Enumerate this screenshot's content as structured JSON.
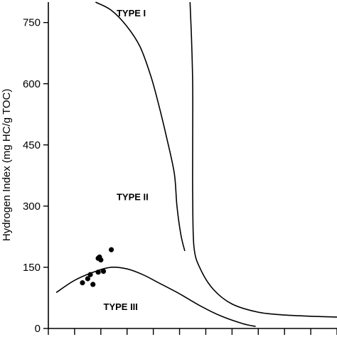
{
  "chart_data": {
    "type": "scatter",
    "title": "",
    "ylabel": "Hydrogen Index (mg HC/g TOC)",
    "xlabel": "",
    "ylim": [
      0,
      800
    ],
    "yticks": [
      0,
      150,
      300,
      450,
      600,
      750
    ],
    "ytick_labels": [
      "0",
      "150",
      "300",
      "450",
      "600",
      "750"
    ],
    "xlim": [
      0,
      11
    ],
    "xticks": [
      0,
      1,
      2,
      3,
      4,
      5,
      6,
      7,
      8,
      9,
      10,
      11
    ],
    "grid": false,
    "curves": [
      {
        "points": [
          [
            1.8,
            800
          ],
          [
            2.4,
            780
          ],
          [
            3.0,
            740
          ],
          [
            3.5,
            690
          ],
          [
            3.9,
            620
          ],
          [
            4.2,
            550
          ],
          [
            4.5,
            470
          ],
          [
            4.8,
            380
          ],
          [
            4.9,
            300
          ],
          [
            5.05,
            230
          ],
          [
            5.2,
            190
          ]
        ]
      },
      {
        "points": [
          [
            5.4,
            800
          ],
          [
            5.45,
            720
          ],
          [
            5.5,
            600
          ],
          [
            5.5,
            450
          ],
          [
            5.5,
            330
          ],
          [
            5.55,
            200
          ],
          [
            5.8,
            145
          ],
          [
            6.3,
            95
          ],
          [
            7.0,
            60
          ],
          [
            8.0,
            40
          ],
          [
            9.0,
            33
          ],
          [
            10.0,
            30
          ],
          [
            11.0,
            28
          ]
        ]
      },
      {
        "points": [
          [
            0.3,
            88
          ],
          [
            1.0,
            118
          ],
          [
            1.8,
            140
          ],
          [
            2.4,
            150
          ],
          [
            3.0,
            146
          ],
          [
            3.6,
            132
          ],
          [
            4.2,
            112
          ],
          [
            5.0,
            85
          ],
          [
            5.8,
            55
          ],
          [
            6.6,
            30
          ],
          [
            7.4,
            12
          ],
          [
            7.9,
            5
          ]
        ]
      }
    ],
    "region_labels": [
      {
        "text": "TYPE I",
        "x": 2.6,
        "y": 765
      },
      {
        "text": "TYPE II",
        "x": 2.6,
        "y": 315
      },
      {
        "text": "TYPE III",
        "x": 2.1,
        "y": 45
      }
    ],
    "series": [
      {
        "points": [
          [
            1.3,
            112
          ],
          [
            1.7,
            108
          ],
          [
            1.5,
            122
          ],
          [
            1.6,
            132
          ],
          [
            1.9,
            138
          ],
          [
            2.1,
            140
          ],
          [
            1.9,
            172
          ],
          [
            1.95,
            175
          ],
          [
            2.0,
            168
          ],
          [
            2.4,
            193
          ]
        ]
      }
    ],
    "colors": {
      "line": "#000000",
      "point": "#000000",
      "background": "#ffffff"
    }
  }
}
